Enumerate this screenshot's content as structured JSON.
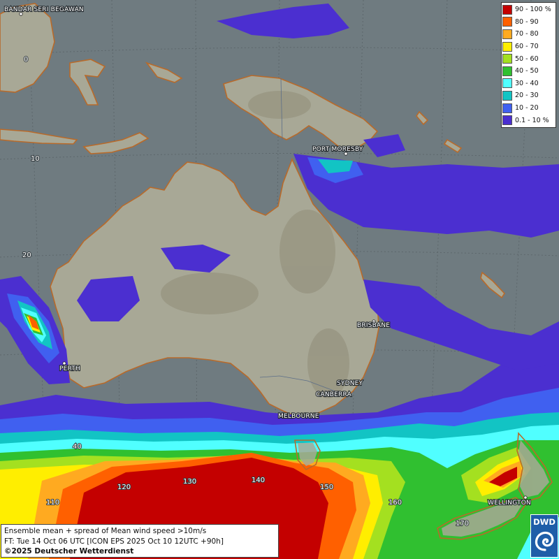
{
  "map": {
    "cities": [
      {
        "name": "BANDAR SERI BEGAWAN"
      },
      {
        "name": "PORT MORESBY"
      },
      {
        "name": "BRISBANE"
      },
      {
        "name": "PERTH"
      },
      {
        "name": "SYDNEY"
      },
      {
        "name": "CANBERRA"
      },
      {
        "name": "MELBOURNE"
      },
      {
        "name": "WELLINGTON"
      }
    ],
    "latitude_labels": [
      "0",
      "10",
      "20",
      "40"
    ],
    "longitude_labels": [
      "110",
      "120",
      "130",
      "140",
      "150",
      "160",
      "170"
    ]
  },
  "legend": {
    "items": [
      {
        "label": "90 - 100 %",
        "color": "#c40000"
      },
      {
        "label": "80 - 90",
        "color": "#ff6000"
      },
      {
        "label": "70 - 80",
        "color": "#ffaa20"
      },
      {
        "label": "60 - 70",
        "color": "#ffee00"
      },
      {
        "label": "50 - 60",
        "color": "#a4e020"
      },
      {
        "label": "40 - 50",
        "color": "#30c030"
      },
      {
        "label": "30 - 40",
        "color": "#50ffff"
      },
      {
        "label": "20 - 30",
        "color": "#12c4c4"
      },
      {
        "label": "10 - 20",
        "color": "#4060f0"
      },
      {
        "label": "0.1 - 10 %",
        "color": "#4b2fd0"
      }
    ]
  },
  "info": {
    "line1": "Ensemble mean + spread of Mean wind speed >10m/s",
    "line2": "FT: Tue 14 Oct 06 UTC [ICON EPS 2025 Oct 10 12UTC +90h]",
    "line3": "©2025 Deutscher Wetterdienst"
  },
  "logo": {
    "text": "DWD"
  }
}
